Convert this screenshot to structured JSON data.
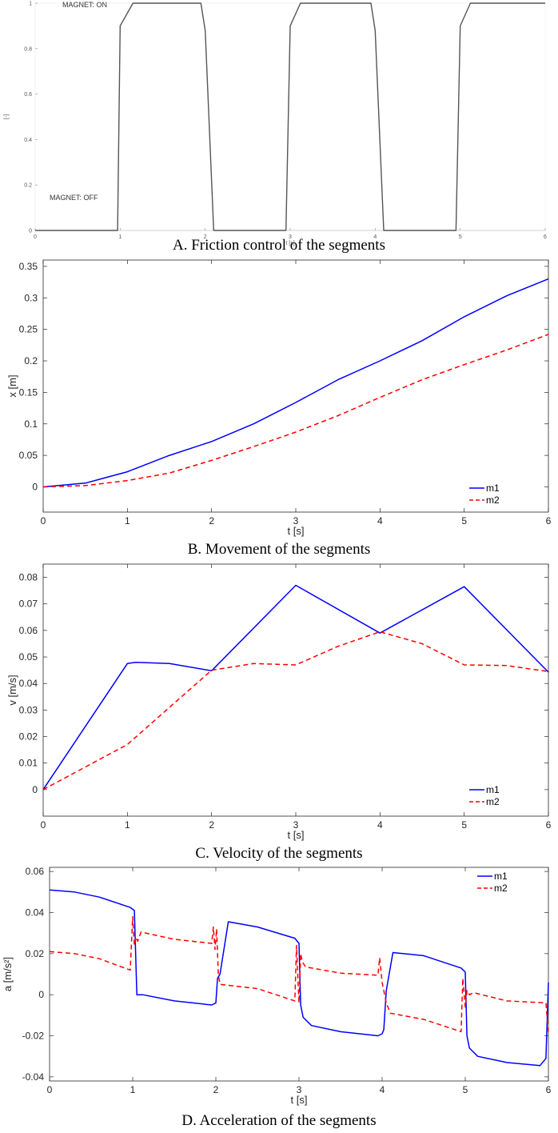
{
  "chart_data": [
    {
      "type": "line",
      "caption": "A. Friction control of the segments",
      "xlabel": "t [s]",
      "ylabel": "[-]",
      "xlim": [
        0,
        6
      ],
      "ylim": [
        0,
        1
      ],
      "x_ticks": [
        "0",
        "1",
        "2",
        "3",
        "4",
        "5",
        "6"
      ],
      "y_ticks": [
        "0",
        "0.2",
        "0.4",
        "0.6",
        "0.8",
        "1"
      ],
      "annotations": [
        "MAGNET: ON",
        "MAGNET: OFF"
      ],
      "grid": false,
      "series": [
        {
          "color": "#555555",
          "dash": "solid",
          "x": [
            0,
            0.97,
            1.0,
            1.15,
            1.95,
            2.0,
            2.1,
            2.95,
            3.0,
            3.12,
            3.95,
            4.0,
            4.1,
            4.95,
            5.0,
            5.12,
            6.0
          ],
          "y": [
            0,
            0,
            0.9,
            1,
            1,
            0.88,
            0,
            0,
            0.9,
            1,
            1,
            0.88,
            0,
            0,
            0.9,
            1,
            1
          ]
        }
      ]
    },
    {
      "type": "line",
      "caption": "B. Movement of the segments",
      "xlabel": "t [s]",
      "ylabel": "x [m]",
      "xlim": [
        0,
        6
      ],
      "ylim": [
        -0.04,
        0.36
      ],
      "x_ticks": [
        "0",
        "1",
        "2",
        "3",
        "4",
        "5",
        "6"
      ],
      "y_ticks": [
        "0",
        "0.05",
        "0.1",
        "0.15",
        "0.2",
        "0.25",
        "0.3",
        "0.35"
      ],
      "legend_position": "bottom-right",
      "grid": false,
      "series": [
        {
          "name": "m1",
          "color": "#0000ff",
          "dash": "solid",
          "x": [
            0,
            0.5,
            1,
            1.5,
            2,
            2.5,
            3,
            3.5,
            4,
            4.5,
            5,
            5.5,
            6
          ],
          "y": [
            0,
            0.006,
            0.024,
            0.05,
            0.072,
            0.1,
            0.134,
            0.17,
            0.2,
            0.232,
            0.27,
            0.303,
            0.33
          ]
        },
        {
          "name": "m2",
          "color": "#ff0000",
          "dash": "dashed",
          "x": [
            0,
            0.5,
            1,
            1.5,
            2,
            2.5,
            3,
            3.5,
            4,
            4.5,
            5,
            5.5,
            6
          ],
          "y": [
            0,
            0.002,
            0.01,
            0.022,
            0.042,
            0.064,
            0.087,
            0.113,
            0.142,
            0.17,
            0.194,
            0.217,
            0.242
          ]
        }
      ]
    },
    {
      "type": "line",
      "caption": "C. Velocity of the segments",
      "xlabel": "t [s]",
      "ylabel": "v [m/s]",
      "xlim": [
        0,
        6
      ],
      "ylim": [
        -0.01,
        0.085
      ],
      "x_ticks": [
        "0",
        "1",
        "2",
        "3",
        "4",
        "5",
        "6"
      ],
      "y_ticks": [
        "0",
        "0.01",
        "0.02",
        "0.03",
        "0.04",
        "0.05",
        "0.06",
        "0.07",
        "0.08"
      ],
      "legend_position": "lower-middle-right",
      "grid": false,
      "series": [
        {
          "name": "m1",
          "color": "#0000ff",
          "dash": "solid",
          "x": [
            0,
            1,
            1.1,
            1.5,
            2,
            3,
            4,
            5,
            6
          ],
          "y": [
            0,
            0.0475,
            0.048,
            0.0475,
            0.0448,
            0.077,
            0.059,
            0.0765,
            0.0443
          ]
        },
        {
          "name": "m2",
          "color": "#ff0000",
          "dash": "dashed",
          "x": [
            0,
            1,
            2,
            2.5,
            3,
            3.5,
            4,
            4.5,
            5,
            5.5,
            6
          ],
          "y": [
            0,
            0.017,
            0.045,
            0.0475,
            0.047,
            0.054,
            0.0595,
            0.055,
            0.047,
            0.0468,
            0.0445
          ]
        }
      ]
    },
    {
      "type": "line",
      "caption": "D. Acceleration of the segments",
      "xlabel": "t [s]",
      "ylabel": "a [m/s²]",
      "xlim": [
        0,
        6
      ],
      "ylim": [
        -0.042,
        0.062
      ],
      "x_ticks": [
        "0",
        "1",
        "2",
        "3",
        "4",
        "5",
        "6"
      ],
      "y_ticks": [
        "-0.04",
        "-0.02",
        "0",
        "0.02",
        "0.04",
        "0.06"
      ],
      "legend_position": "top-right",
      "grid": false,
      "series": [
        {
          "name": "m1",
          "color": "#0000ff",
          "dash": "solid",
          "x": [
            0,
            0.3,
            0.6,
            0.97,
            1.02,
            1.04,
            1.05,
            1.12,
            1.5,
            1.95,
            2.0,
            2.02,
            2.05,
            2.15,
            2.5,
            2.95,
            3.0,
            3.02,
            3.05,
            3.15,
            3.5,
            3.95,
            4.0,
            4.02,
            4.05,
            4.13,
            4.5,
            4.95,
            5.0,
            5.02,
            5.05,
            5.15,
            5.5,
            5.9,
            5.97,
            6.0
          ],
          "y": [
            0.051,
            0.05,
            0.0475,
            0.0425,
            0.041,
            0.013,
            0,
            0,
            -0.003,
            -0.005,
            -0.004,
            0.008,
            0.01,
            0.0355,
            0.033,
            0.0275,
            0.025,
            -0.005,
            -0.011,
            -0.015,
            -0.018,
            -0.02,
            -0.019,
            -0.017,
            0.002,
            0.0205,
            0.019,
            0.013,
            0.011,
            -0.02,
            -0.026,
            -0.03,
            -0.033,
            -0.0345,
            -0.031,
            0.006
          ]
        },
        {
          "name": "m2",
          "color": "#ff0000",
          "dash": "dashed",
          "x": [
            0,
            0.3,
            0.6,
            0.97,
            1.0,
            1.02,
            1.04,
            1.06,
            1.1,
            1.5,
            1.95,
            1.97,
            1.99,
            2.01,
            2.03,
            2.05,
            2.5,
            2.95,
            2.97,
            3.0,
            3.02,
            3.04,
            3.08,
            3.5,
            3.95,
            3.97,
            4.0,
            4.02,
            4.05,
            4.1,
            4.5,
            4.95,
            4.97,
            5.0,
            5.02,
            5.05,
            5.1,
            5.5,
            5.97,
            6.0
          ],
          "y": [
            0.021,
            0.02,
            0.0175,
            0.012,
            0.038,
            0.024,
            0.028,
            0.026,
            0.0305,
            0.027,
            0.025,
            0.033,
            0.022,
            0.032,
            0.01,
            0.005,
            0.003,
            -0.003,
            0.024,
            -0.004,
            0.02,
            0.016,
            0.0135,
            0.0105,
            0.0095,
            0.018,
            0.006,
            0.002,
            -0.004,
            -0.009,
            -0.012,
            -0.018,
            0.008,
            -0.006,
            0.002,
            0,
            0.001,
            -0.003,
            -0.004,
            -0.019
          ]
        }
      ]
    }
  ]
}
